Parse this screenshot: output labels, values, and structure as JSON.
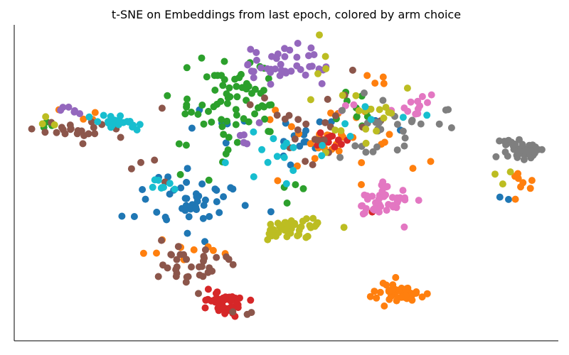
{
  "chart_data": {
    "type": "scatter",
    "title": "t-SNE on Embeddings from last epoch, colored by arm choice",
    "xlabel": "",
    "ylabel": "",
    "xlim": [
      0,
      100
    ],
    "ylim": [
      0,
      100
    ],
    "grid": false,
    "legend": false,
    "ticks": false,
    "clusters": [
      {
        "color": "#1f77b4",
        "count": 45,
        "cx": 33,
        "cy": 44,
        "sx": 5.0,
        "sy": 5.0
      },
      {
        "color": "#1f77b4",
        "count": 18,
        "cx": 52,
        "cy": 65,
        "sx": 8.0,
        "sy": 5.0
      },
      {
        "color": "#1f77b4",
        "count": 4,
        "cx": 36,
        "cy": 68,
        "sx": 2.5,
        "sy": 3.0
      },
      {
        "color": "#1f77b4",
        "count": 2,
        "cx": 90,
        "cy": 46,
        "sx": 1.0,
        "sy": 1.0
      },
      {
        "color": "#ff7f0e",
        "count": 45,
        "cx": 71,
        "cy": 16,
        "sx": 2.5,
        "sy": 1.8
      },
      {
        "color": "#ff7f0e",
        "count": 30,
        "cx": 60,
        "cy": 62,
        "sx": 6.0,
        "sy": 6.0
      },
      {
        "color": "#ff7f0e",
        "count": 10,
        "cx": 34,
        "cy": 28,
        "sx": 7.0,
        "sy": 3.0
      },
      {
        "color": "#ff7f0e",
        "count": 8,
        "cx": 93,
        "cy": 51,
        "sx": 1.5,
        "sy": 2.0
      },
      {
        "color": "#ff7f0e",
        "count": 4,
        "cx": 11,
        "cy": 72,
        "sx": 2.0,
        "sy": 1.5
      },
      {
        "color": "#ff7f0e",
        "count": 4,
        "cx": 66,
        "cy": 83,
        "sx": 1.5,
        "sy": 1.5
      },
      {
        "color": "#2ca02c",
        "count": 75,
        "cx": 40,
        "cy": 74,
        "sx": 5.0,
        "sy": 7.5
      },
      {
        "color": "#2ca02c",
        "count": 10,
        "cx": 62,
        "cy": 74,
        "sx": 2.5,
        "sy": 5.0
      },
      {
        "color": "#2ca02c",
        "count": 3,
        "cx": 7,
        "cy": 67,
        "sx": 1.5,
        "sy": 1.5
      },
      {
        "color": "#2ca02c",
        "count": 4,
        "cx": 52,
        "cy": 46,
        "sx": 1.5,
        "sy": 2.5
      },
      {
        "color": "#d62728",
        "count": 45,
        "cx": 38,
        "cy": 12,
        "sx": 2.0,
        "sy": 2.0
      },
      {
        "color": "#d62728",
        "count": 12,
        "cx": 58,
        "cy": 63,
        "sx": 1.5,
        "sy": 1.2
      },
      {
        "color": "#d62728",
        "count": 2,
        "cx": 66,
        "cy": 42,
        "sx": 1.0,
        "sy": 1.0
      },
      {
        "color": "#9467bd",
        "count": 40,
        "cx": 50,
        "cy": 87,
        "sx": 4.0,
        "sy": 3.0
      },
      {
        "color": "#9467bd",
        "count": 6,
        "cx": 10,
        "cy": 73,
        "sx": 1.5,
        "sy": 1.5
      },
      {
        "color": "#9467bd",
        "count": 5,
        "cx": 44,
        "cy": 64,
        "sx": 2.0,
        "sy": 2.0
      },
      {
        "color": "#8c564b",
        "count": 35,
        "cx": 31,
        "cy": 25,
        "sx": 4.0,
        "sy": 3.0
      },
      {
        "color": "#8c564b",
        "count": 22,
        "cx": 11,
        "cy": 67,
        "sx": 3.5,
        "sy": 1.5
      },
      {
        "color": "#8c564b",
        "count": 25,
        "cx": 55,
        "cy": 68,
        "sx": 8.0,
        "sy": 8.0
      },
      {
        "color": "#8c564b",
        "count": 3,
        "cx": 42,
        "cy": 9,
        "sx": 1.0,
        "sy": 1.0
      },
      {
        "color": "#8c564b",
        "count": 4,
        "cx": 25,
        "cy": 57,
        "sx": 2.0,
        "sy": 3.0
      },
      {
        "color": "#e377c2",
        "count": 50,
        "cx": 68,
        "cy": 44,
        "sx": 2.5,
        "sy": 2.5
      },
      {
        "color": "#e377c2",
        "count": 12,
        "cx": 73,
        "cy": 74,
        "sx": 2.0,
        "sy": 1.5
      },
      {
        "color": "#e377c2",
        "count": 3,
        "cx": 61,
        "cy": 75,
        "sx": 1.0,
        "sy": 1.0
      },
      {
        "color": "#7f7f7f",
        "count": 45,
        "cx": 93,
        "cy": 61,
        "sx": 1.8,
        "sy": 1.8
      },
      {
        "color": "#7f7f7f",
        "count": 30,
        "cx": 70,
        "cy": 68,
        "sx": 5.0,
        "sy": 5.0
      },
      {
        "color": "#bcbd22",
        "count": 45,
        "cx": 51,
        "cy": 36,
        "sx": 3.0,
        "sy": 2.0
      },
      {
        "color": "#bcbd22",
        "count": 18,
        "cx": 63,
        "cy": 71,
        "sx": 5.0,
        "sy": 5.0
      },
      {
        "color": "#bcbd22",
        "count": 4,
        "cx": 56,
        "cy": 88,
        "sx": 1.5,
        "sy": 3.0
      },
      {
        "color": "#bcbd22",
        "count": 3,
        "cx": 6,
        "cy": 70,
        "sx": 1.5,
        "sy": 1.2
      },
      {
        "color": "#bcbd22",
        "count": 3,
        "cx": 89,
        "cy": 51,
        "sx": 2.0,
        "sy": 3.0
      },
      {
        "color": "#17becf",
        "count": 22,
        "cx": 19,
        "cy": 69,
        "sx": 3.0,
        "sy": 1.2
      },
      {
        "color": "#17becf",
        "count": 8,
        "cx": 26,
        "cy": 48,
        "sx": 1.5,
        "sy": 2.0
      },
      {
        "color": "#17becf",
        "count": 15,
        "cx": 50,
        "cy": 58,
        "sx": 5.0,
        "sy": 5.0
      },
      {
        "color": "#17becf",
        "count": 6,
        "cx": 67,
        "cy": 68,
        "sx": 3.0,
        "sy": 4.0
      }
    ]
  }
}
